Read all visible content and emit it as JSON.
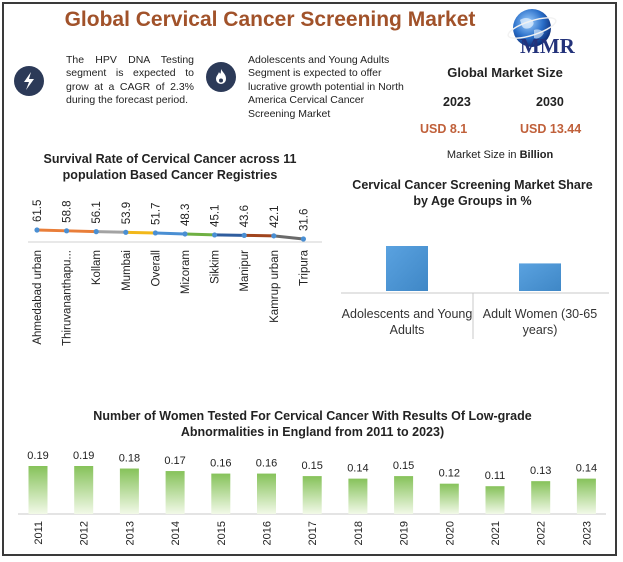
{
  "title": "Global Cervical Cancer Screening Market",
  "logo": {
    "text": "MMR"
  },
  "highlights": [
    {
      "icon": "lightning-icon",
      "text": "The HPV DNA Testing segment is expected to grow at a CAGR of 2.3% during the forecast period."
    },
    {
      "icon": "flame-icon",
      "text": "Adolescents and Young Adults Segment is expected to offer lucrative growth potential in North America Cervical Cancer Screening Market"
    }
  ],
  "global_market": {
    "title": "Global Market Size",
    "year_start": "2023",
    "year_end": "2030",
    "value_start": "USD 8.1",
    "value_end": "USD 13.44",
    "unit_label": "Market Size in",
    "unit_value": "Billion"
  },
  "colors": {
    "title": "#a1522a",
    "value": "#c0603a",
    "bar_blue": "#3f87c6",
    "bar_green_top": "#86c25a",
    "bar_green_bottom": "#f2f9e8"
  },
  "chart_data": [
    {
      "type": "line",
      "title": "Survival Rate of Cervical Cancer across 11 population Based Cancer Registries",
      "categories": [
        "Ahmedabad urban",
        "Thiruvananthapu...",
        "Kollam",
        "Mumbai",
        "Overall",
        "Mizoram",
        "Sikkim",
        "Manipur",
        "Kamrup urban",
        "Tripura"
      ],
      "values": [
        61.5,
        58.8,
        56.1,
        53.9,
        51.7,
        48.3,
        45.1,
        43.6,
        42.1,
        31.6
      ],
      "segment_colors": [
        "#e97e39",
        "#e97e39",
        "#a3a3a3",
        "#f2b81a",
        "#4a8fd3",
        "#6fb043",
        "#2f5d9e",
        "#a0441d",
        "#6a6a6a",
        "#8a6a10"
      ],
      "ylim": [
        0,
        100
      ]
    },
    {
      "type": "bar",
      "title": "Cervical Cancer Screening Market Share by Age Groups in %",
      "categories": [
        "Adolescents and Young Adults",
        "Adult Women (30-65 years)"
      ],
      "values": [
        62,
        38
      ],
      "ylim": [
        0,
        100
      ]
    },
    {
      "type": "bar",
      "title": "Number of Women Tested For Cervical Cancer With Results Of Low-grade Abnormalities in England from 2011 to 2023)",
      "categories": [
        "2011",
        "2012",
        "2013",
        "2014",
        "2015",
        "2016",
        "2017",
        "2018",
        "2019",
        "2020",
        "2021",
        "2022",
        "2023"
      ],
      "values": [
        0.19,
        0.19,
        0.18,
        0.17,
        0.16,
        0.16,
        0.15,
        0.14,
        0.15,
        0.12,
        0.11,
        0.13,
        0.14
      ],
      "ylim": [
        0,
        0.2
      ]
    }
  ]
}
